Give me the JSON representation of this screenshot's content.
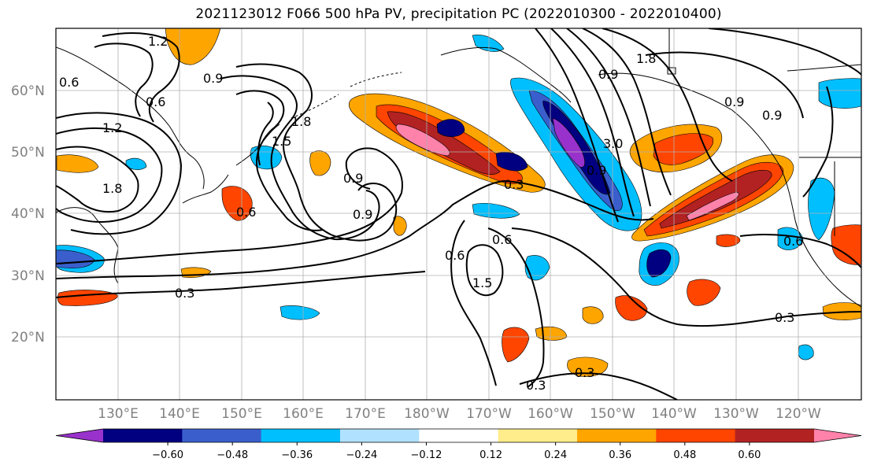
{
  "title": "2021123012 F066 500 hPa PV, precipitation PC (2022010300 - 2022010400)",
  "map": {
    "lat_labels": [
      "60°N",
      "50°N",
      "40°N",
      "30°N",
      "20°N"
    ],
    "lon_labels": [
      "130°E",
      "140°E",
      "150°E",
      "160°E",
      "170°E",
      "180°W",
      "170°W",
      "160°W",
      "150°W",
      "140°W",
      "130°W",
      "120°W"
    ],
    "pv_contour_labels": [
      "1.2",
      "0.6",
      "0.6",
      "0.9",
      "1.2",
      "1.5",
      "1.8",
      "0.9",
      "0.9",
      "1.8",
      "0.6",
      "0.6",
      "0.3",
      "0.9",
      "1.5",
      "0.6",
      "0.9",
      "1.8",
      "3.0",
      "0.9",
      "0.9",
      "0.3",
      "0.3",
      "0.3",
      "0.3",
      "0.6"
    ]
  },
  "colorbar": {
    "tick_labels": [
      "−0.60",
      "−0.48",
      "−0.36",
      "−0.24",
      "−0.12",
      "0.12",
      "0.24",
      "0.36",
      "0.48",
      "0.60"
    ],
    "colors": [
      "#9932cc",
      "#000080",
      "#3a5fcd",
      "#00bfff",
      "#b0e2ff",
      "#ffffff",
      "#ffec8b",
      "#ffa500",
      "#ff4500",
      "#b22222",
      "#ff82ab"
    ]
  }
}
